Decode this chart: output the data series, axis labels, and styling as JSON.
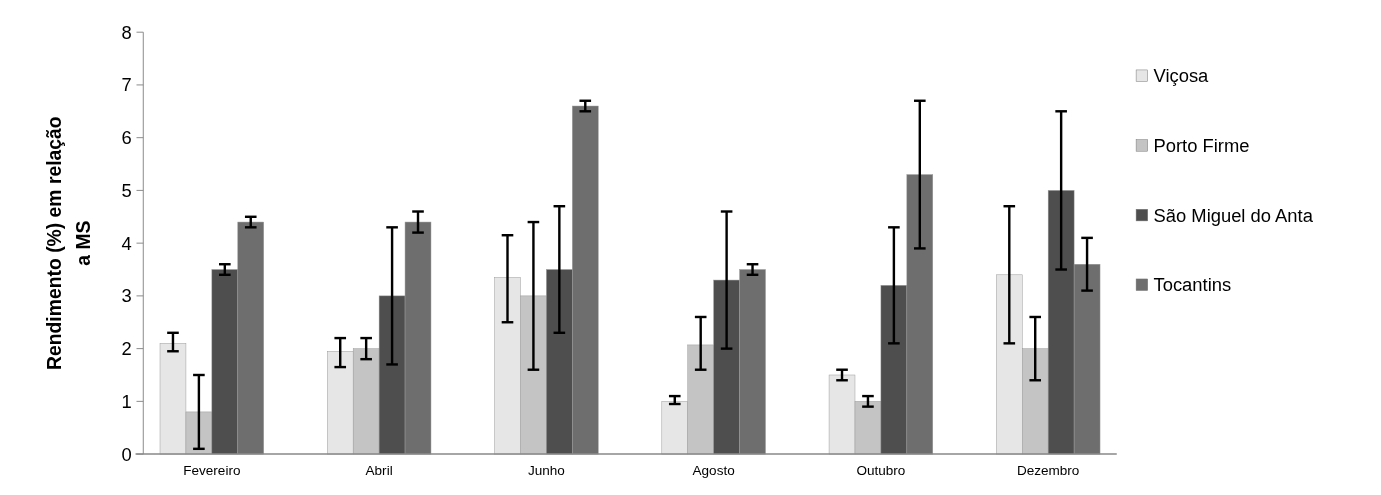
{
  "chart_data": {
    "type": "bar",
    "ylabel": "Rendimento (%) em relação\na  MS",
    "categories": [
      "Fevereiro",
      "Abril",
      "Junho",
      "Agosto",
      "Outubro",
      "Dezembro"
    ],
    "series": [
      {
        "name": "Viçosa",
        "color": "#e6e6e6",
        "values": [
          2.1,
          1.95,
          3.35,
          1.0,
          1.5,
          3.4
        ],
        "errors": [
          [
            1.95,
            2.3
          ],
          [
            1.65,
            2.2
          ],
          [
            2.5,
            4.15
          ],
          [
            0.95,
            1.1
          ],
          [
            1.4,
            1.6
          ],
          [
            2.1,
            4.7
          ]
        ]
      },
      {
        "name": "Porto Firme",
        "color": "#c4c4c4",
        "values": [
          0.8,
          2.0,
          3.0,
          2.07,
          1.0,
          2.0
        ],
        "errors": [
          [
            0.1,
            1.5
          ],
          [
            1.8,
            2.2
          ],
          [
            1.6,
            4.4
          ],
          [
            1.6,
            2.6
          ],
          [
            0.9,
            1.1
          ],
          [
            1.4,
            2.6
          ]
        ]
      },
      {
        "name": "São Miguel do Anta",
        "color": "#4e4e4e",
        "values": [
          3.5,
          3.0,
          3.5,
          3.3,
          3.2,
          5.0
        ],
        "errors": [
          [
            3.4,
            3.6
          ],
          [
            1.7,
            4.3
          ],
          [
            2.3,
            4.7
          ],
          [
            2.0,
            4.6
          ],
          [
            2.1,
            4.3
          ],
          [
            3.5,
            6.5
          ]
        ]
      },
      {
        "name": "Tocantins",
        "color": "#6e6e6e",
        "values": [
          4.4,
          4.4,
          6.6,
          3.5,
          5.3,
          3.6
        ],
        "errors": [
          [
            4.3,
            4.5
          ],
          [
            4.2,
            4.6
          ],
          [
            6.5,
            6.7
          ],
          [
            3.4,
            3.6
          ],
          [
            3.9,
            6.7
          ],
          [
            3.1,
            4.1
          ]
        ]
      }
    ],
    "ylim": [
      0,
      8
    ],
    "yticks": [
      0,
      1,
      2,
      3,
      4,
      5,
      6,
      7,
      8
    ],
    "legend": "right"
  }
}
